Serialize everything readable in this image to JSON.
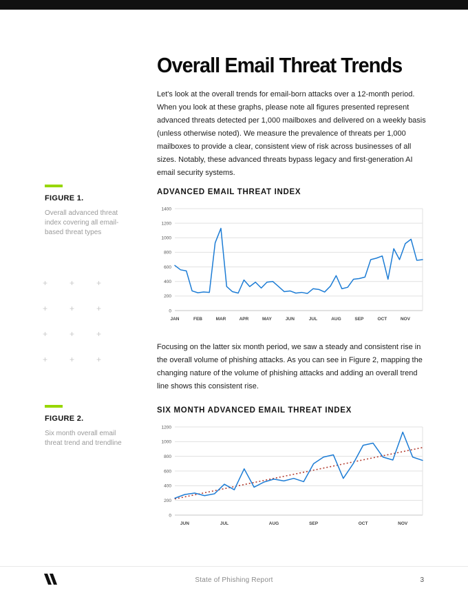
{
  "colors": {
    "accent_green": "#97d700",
    "line_blue": "#1c7cd5",
    "trend_red": "#b23b2e",
    "grid_gray": "#e0e0e0",
    "top_bar": "#111111"
  },
  "page": {
    "title": "Overall Email Threat Trends",
    "intro": "Let's look at the overall trends for email-born attacks over a 12-month period. When you look at these graphs, please note all figures presented represent advanced threats detected per 1,000 mailboxes and delivered on a weekly basis (unless otherwise noted). We measure the prevalence of threats per 1,000 mailboxes to provide a clear, consistent view of risk across businesses of all sizes. Notably, these advanced threats bypass legacy and first-generation AI email security systems.",
    "body2": "Focusing on the latter six month period, we saw a steady and consistent rise in the overall volume of phishing attacks. As you can see in Figure 2, mapping the changing nature of the volume of phishing attacks and adding an overall trend line shows this consistent rise."
  },
  "figure1": {
    "label": "FIGURE 1.",
    "caption": "Overall advanced threat index covering all email-based threat types"
  },
  "figure2": {
    "label": "FIGURE 2.",
    "caption": "Six month overall email threat trend and trendline"
  },
  "decor": {
    "glyph": "+",
    "count": 12
  },
  "footer": {
    "report_title": "State of Phishing Report",
    "page_number": "3"
  },
  "chart_data": [
    {
      "type": "line",
      "title": "ADVANCED EMAIL THREAT INDEX",
      "x_unit": "week",
      "categories": [
        "JAN",
        "FEB",
        "MAR",
        "APR",
        "MAY",
        "JUN",
        "JUL",
        "AUG",
        "SEP",
        "OCT",
        "NOV"
      ],
      "label_indices": [
        0,
        4,
        8,
        12,
        16,
        20,
        24,
        28,
        32,
        36,
        40
      ],
      "values": [
        620,
        560,
        545,
        270,
        245,
        255,
        250,
        930,
        1130,
        330,
        260,
        240,
        420,
        330,
        390,
        310,
        390,
        400,
        330,
        260,
        270,
        240,
        250,
        235,
        300,
        290,
        255,
        335,
        480,
        300,
        320,
        430,
        440,
        460,
        700,
        720,
        750,
        430,
        850,
        700,
        920,
        980,
        690,
        700
      ],
      "ylim": [
        0,
        1400
      ],
      "yticks": [
        0,
        200,
        400,
        600,
        800,
        1000,
        1200,
        1400
      ],
      "grid": "horizontal",
      "legend": "none"
    },
    {
      "type": "line",
      "title": "SIX MONTH ADVANCED EMAIL THREAT INDEX",
      "x_unit": "week",
      "categories": [
        "JUN",
        "JUL",
        "AUG",
        "SEP",
        "OCT",
        "NOV"
      ],
      "label_indices": [
        1,
        5,
        10,
        14,
        19,
        23
      ],
      "values": [
        230,
        280,
        300,
        265,
        290,
        420,
        345,
        630,
        380,
        450,
        490,
        465,
        500,
        455,
        700,
        790,
        820,
        500,
        700,
        950,
        980,
        790,
        750,
        1130,
        790,
        745
      ],
      "ylim": [
        0,
        1200
      ],
      "yticks": [
        0,
        200,
        400,
        600,
        800,
        1000,
        1200
      ],
      "trendline": {
        "start": 220,
        "end": 920,
        "style": "dotted",
        "color": "#b23b2e"
      },
      "grid": "horizontal",
      "legend": "none"
    }
  ]
}
